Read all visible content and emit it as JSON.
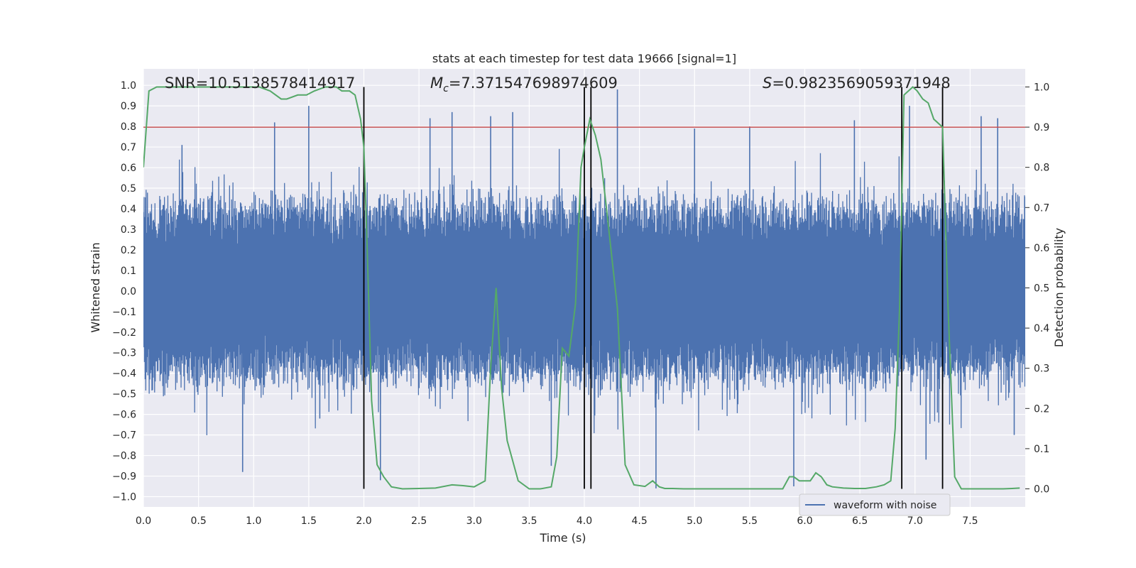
{
  "chart_data": {
    "type": "line",
    "title": "stats at each timestep for test data 19666 [signal=1]",
    "xlabel": "Time (s)",
    "ylabel_left": "Whitened strain",
    "ylabel_right": "Detection probability",
    "xlim": [
      0,
      8
    ],
    "ylim_left": [
      -1.05,
      1.08
    ],
    "ylim_right": [
      -0.045,
      1.045
    ],
    "x_ticks": [
      "0.0",
      "0.5",
      "1.0",
      "1.5",
      "2.0",
      "2.5",
      "3.0",
      "3.5",
      "4.0",
      "4.5",
      "5.0",
      "5.5",
      "6.0",
      "6.5",
      "7.0",
      "7.5"
    ],
    "x_tick_values": [
      0,
      0.5,
      1,
      1.5,
      2,
      2.5,
      3,
      3.5,
      4,
      4.5,
      5,
      5.5,
      6,
      6.5,
      7,
      7.5
    ],
    "y_left_ticks": [
      "1.0",
      "0.9",
      "0.8",
      "0.7",
      "0.6",
      "0.5",
      "0.4",
      "0.3",
      "0.2",
      "0.1",
      "0.0",
      "−0.1",
      "−0.2",
      "−0.3",
      "−0.4",
      "−0.5",
      "−0.6",
      "−0.7",
      "−0.8",
      "−0.9",
      "−1.0"
    ],
    "y_left_tick_values": [
      1,
      0.9,
      0.8,
      0.7,
      0.6,
      0.5,
      0.4,
      0.3,
      0.2,
      0.1,
      0,
      -0.1,
      -0.2,
      -0.3,
      -0.4,
      -0.5,
      -0.6,
      -0.7,
      -0.8,
      -0.9,
      -1.0
    ],
    "y_right_ticks": [
      "1.0",
      "0.9",
      "0.8",
      "0.7",
      "0.6",
      "0.5",
      "0.4",
      "0.3",
      "0.2",
      "0.1",
      "0.0"
    ],
    "y_right_tick_values": [
      1,
      0.9,
      0.8,
      0.7,
      0.6,
      0.5,
      0.4,
      0.3,
      0.2,
      0.1,
      0
    ],
    "grid": true,
    "annotations": {
      "snr": "SNR=10.5138578414917",
      "mc_symbol": "M",
      "mc_sub": "c",
      "mc_value": "=7.371547698974609",
      "s_symbol": "S",
      "s_value": "=0.9823569059371948"
    },
    "threshold": {
      "value_right": 0.9,
      "color": "#c44e52"
    },
    "vertical_lines": [
      2.0,
      4.0,
      4.06,
      6.88,
      7.25
    ],
    "series": [
      {
        "name": "waveform with noise",
        "color": "#4c72b0",
        "kind": "noise",
        "envelope": 0.38,
        "x_range": [
          0,
          8
        ],
        "spikes": [
          [
            0.35,
            0.71
          ],
          [
            0.9,
            -0.88
          ],
          [
            1.19,
            0.82
          ],
          [
            1.5,
            0.9
          ],
          [
            1.6,
            -0.62
          ],
          [
            2.15,
            -0.92
          ],
          [
            2.6,
            0.84
          ],
          [
            2.8,
            0.87
          ],
          [
            3.15,
            0.85
          ],
          [
            3.35,
            0.87
          ],
          [
            3.7,
            -0.85
          ],
          [
            4.3,
            0.98
          ],
          [
            4.65,
            -0.96
          ],
          [
            5.0,
            0.79
          ],
          [
            5.5,
            0.8
          ],
          [
            5.9,
            -0.95
          ],
          [
            6.45,
            0.83
          ],
          [
            6.95,
            0.9
          ],
          [
            7.1,
            -0.82
          ],
          [
            7.6,
            0.85
          ],
          [
            7.75,
            0.84
          ],
          [
            7.9,
            -0.7
          ]
        ],
        "legend": true
      },
      {
        "name": "",
        "color": "#55a868",
        "kind": "probability",
        "axis": "right",
        "x": [
          0.0,
          0.05,
          0.12,
          0.2,
          0.3,
          0.5,
          0.7,
          0.9,
          1.05,
          1.15,
          1.25,
          1.3,
          1.4,
          1.48,
          1.55,
          1.65,
          1.75,
          1.8,
          1.87,
          1.92,
          1.97,
          2.0,
          2.03,
          2.07,
          2.12,
          2.18,
          2.25,
          2.35,
          2.5,
          2.65,
          2.8,
          2.9,
          3.0,
          3.1,
          3.15,
          3.2,
          3.25,
          3.3,
          3.4,
          3.5,
          3.6,
          3.7,
          3.75,
          3.8,
          3.86,
          3.92,
          3.97,
          4.0,
          4.05,
          4.1,
          4.15,
          4.2,
          4.26,
          4.3,
          4.37,
          4.45,
          4.55,
          4.62,
          4.68,
          4.73,
          4.8,
          4.9,
          5.0,
          5.2,
          5.4,
          5.6,
          5.8,
          5.86,
          5.9,
          5.95,
          6.0,
          6.05,
          6.1,
          6.15,
          6.2,
          6.25,
          6.35,
          6.45,
          6.55,
          6.65,
          6.72,
          6.78,
          6.82,
          6.86,
          6.9,
          6.94,
          6.98,
          7.02,
          7.07,
          7.12,
          7.17,
          7.25,
          7.3,
          7.36,
          7.42,
          7.5,
          7.6,
          7.7,
          7.8,
          7.88,
          7.95
        ],
        "y": [
          0.8,
          0.99,
          1.0,
          1.0,
          1.0,
          1.0,
          1.0,
          1.0,
          1.0,
          0.99,
          0.97,
          0.97,
          0.98,
          0.98,
          0.99,
          1.0,
          1.0,
          0.99,
          0.99,
          0.98,
          0.92,
          0.85,
          0.6,
          0.22,
          0.06,
          0.03,
          0.005,
          0.0,
          0.001,
          0.002,
          0.01,
          0.008,
          0.005,
          0.02,
          0.3,
          0.5,
          0.25,
          0.12,
          0.02,
          0.0,
          0.0,
          0.005,
          0.08,
          0.35,
          0.33,
          0.46,
          0.8,
          0.85,
          0.92,
          0.88,
          0.82,
          0.7,
          0.55,
          0.45,
          0.06,
          0.01,
          0.006,
          0.02,
          0.005,
          0.001,
          0.001,
          0.0,
          0.0,
          0.0,
          0.0,
          0.0,
          0.0,
          0.03,
          0.03,
          0.02,
          0.02,
          0.02,
          0.04,
          0.03,
          0.01,
          0.005,
          0.002,
          0.001,
          0.001,
          0.005,
          0.01,
          0.02,
          0.15,
          0.45,
          0.98,
          0.99,
          1.0,
          0.99,
          0.97,
          0.96,
          0.92,
          0.9,
          0.45,
          0.03,
          0.0,
          0.0,
          0.0,
          0.0,
          0.0,
          0.001,
          0.002
        ],
        "legend": false
      }
    ],
    "legend_position": "lower right"
  }
}
